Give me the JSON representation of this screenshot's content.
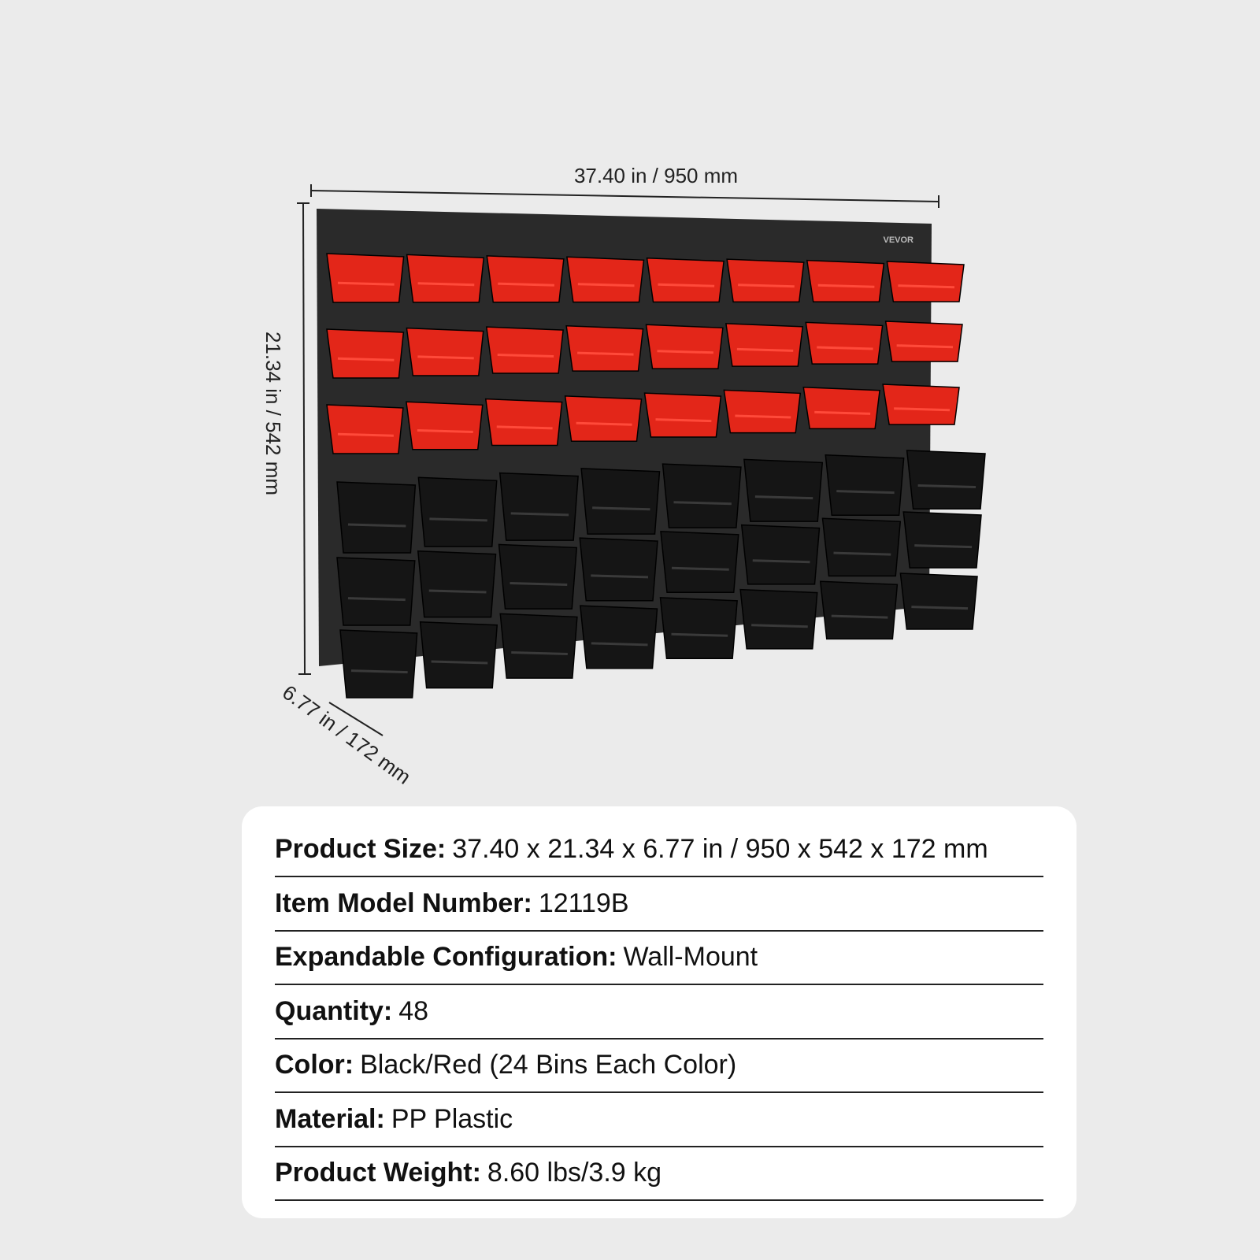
{
  "product": {
    "brand": "VEVOR",
    "dimensions": {
      "width": "37.40 in / 950 mm",
      "height": "21.34 in / 542 mm",
      "depth": "6.77 in / 172 mm"
    },
    "specs": [
      {
        "label": "Product Size:",
        "value": "37.40 x 21.34 x 6.77 in / 950 x 542 x 172 mm"
      },
      {
        "label": "Item Model Number:",
        "value": "12119B"
      },
      {
        "label": "Expandable Configuration:",
        "value": "Wall-Mount"
      },
      {
        "label": "Quantity:",
        "value": "48"
      },
      {
        "label": "Color:",
        "value": "Black/Red (24 Bins Each Color)"
      },
      {
        "label": "Material:",
        "value": "PP Plastic"
      },
      {
        "label": "Product Weight:",
        "value": "8.60 lbs/3.9 kg"
      }
    ]
  }
}
